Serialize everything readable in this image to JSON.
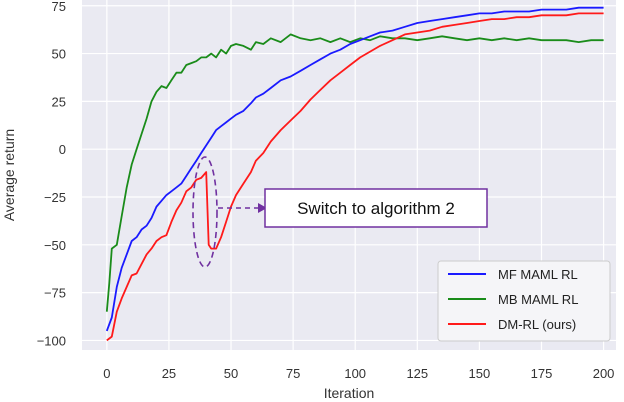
{
  "chart_data": {
    "type": "line",
    "xlabel": "Iteration",
    "ylabel": "Average return",
    "xlim": [
      -10,
      205
    ],
    "ylim": [
      -105,
      78
    ],
    "xticks": [
      "0",
      "25",
      "50",
      "75",
      "100",
      "125",
      "150",
      "175",
      "200"
    ],
    "yticks": [
      "75",
      "50",
      "25",
      "0",
      "−25",
      "−50",
      "−75",
      "−100"
    ],
    "grid": true,
    "legend_position": "lower-right",
    "annotation": {
      "text": "Switch to algorithm 2",
      "x": 42,
      "y": -30
    },
    "series": [
      {
        "name": "MF MAML RL",
        "color": "#1a1aff",
        "points": [
          [
            0,
            -95
          ],
          [
            2,
            -88
          ],
          [
            4,
            -72
          ],
          [
            6,
            -62
          ],
          [
            8,
            -55
          ],
          [
            10,
            -48
          ],
          [
            12,
            -46
          ],
          [
            14,
            -42
          ],
          [
            16,
            -40
          ],
          [
            18,
            -36
          ],
          [
            20,
            -30
          ],
          [
            22,
            -27
          ],
          [
            24,
            -24
          ],
          [
            26,
            -22
          ],
          [
            28,
            -20
          ],
          [
            30,
            -18
          ],
          [
            32,
            -14
          ],
          [
            34,
            -10
          ],
          [
            36,
            -6
          ],
          [
            38,
            -2
          ],
          [
            40,
            2
          ],
          [
            42,
            6
          ],
          [
            44,
            10
          ],
          [
            46,
            12
          ],
          [
            48,
            14
          ],
          [
            50,
            16
          ],
          [
            52,
            18
          ],
          [
            55,
            20
          ],
          [
            58,
            24
          ],
          [
            60,
            27
          ],
          [
            63,
            29
          ],
          [
            66,
            32
          ],
          [
            70,
            36
          ],
          [
            74,
            38
          ],
          [
            78,
            41
          ],
          [
            82,
            44
          ],
          [
            86,
            47
          ],
          [
            90,
            50
          ],
          [
            94,
            52
          ],
          [
            98,
            55
          ],
          [
            102,
            57
          ],
          [
            106,
            59
          ],
          [
            110,
            61
          ],
          [
            115,
            62
          ],
          [
            120,
            64
          ],
          [
            125,
            66
          ],
          [
            130,
            67
          ],
          [
            135,
            68
          ],
          [
            140,
            69
          ],
          [
            145,
            70
          ],
          [
            150,
            71
          ],
          [
            155,
            71
          ],
          [
            160,
            72
          ],
          [
            165,
            72
          ],
          [
            170,
            72
          ],
          [
            175,
            73
          ],
          [
            180,
            73
          ],
          [
            185,
            73
          ],
          [
            190,
            74
          ],
          [
            195,
            74
          ],
          [
            200,
            74
          ]
        ]
      },
      {
        "name": "MB MAML RL",
        "color": "#1a8c1a",
        "points": [
          [
            0,
            -85
          ],
          [
            1,
            -70
          ],
          [
            2,
            -52
          ],
          [
            4,
            -50
          ],
          [
            6,
            -35
          ],
          [
            8,
            -20
          ],
          [
            10,
            -8
          ],
          [
            12,
            0
          ],
          [
            14,
            8
          ],
          [
            16,
            16
          ],
          [
            18,
            25
          ],
          [
            20,
            30
          ],
          [
            22,
            33
          ],
          [
            24,
            32
          ],
          [
            26,
            36
          ],
          [
            28,
            40
          ],
          [
            30,
            40
          ],
          [
            32,
            44
          ],
          [
            34,
            45
          ],
          [
            36,
            46
          ],
          [
            38,
            48
          ],
          [
            40,
            48
          ],
          [
            42,
            50
          ],
          [
            44,
            48
          ],
          [
            46,
            52
          ],
          [
            48,
            50
          ],
          [
            50,
            54
          ],
          [
            52,
            55
          ],
          [
            55,
            54
          ],
          [
            58,
            52
          ],
          [
            60,
            56
          ],
          [
            63,
            55
          ],
          [
            66,
            58
          ],
          [
            70,
            56
          ],
          [
            74,
            60
          ],
          [
            78,
            58
          ],
          [
            82,
            57
          ],
          [
            86,
            58
          ],
          [
            90,
            56
          ],
          [
            94,
            58
          ],
          [
            98,
            56
          ],
          [
            102,
            58
          ],
          [
            106,
            57
          ],
          [
            110,
            59
          ],
          [
            115,
            58
          ],
          [
            120,
            58
          ],
          [
            125,
            57
          ],
          [
            130,
            58
          ],
          [
            135,
            59
          ],
          [
            140,
            58
          ],
          [
            145,
            57
          ],
          [
            150,
            58
          ],
          [
            155,
            57
          ],
          [
            160,
            58
          ],
          [
            165,
            57
          ],
          [
            170,
            58
          ],
          [
            175,
            57
          ],
          [
            180,
            57
          ],
          [
            185,
            57
          ],
          [
            190,
            56
          ],
          [
            195,
            57
          ],
          [
            200,
            57
          ]
        ]
      },
      {
        "name": "DM-RL (ours)",
        "color": "#ff1a1a",
        "points": [
          [
            0,
            -100
          ],
          [
            2,
            -98
          ],
          [
            4,
            -85
          ],
          [
            6,
            -78
          ],
          [
            8,
            -72
          ],
          [
            10,
            -66
          ],
          [
            12,
            -65
          ],
          [
            14,
            -60
          ],
          [
            16,
            -55
          ],
          [
            18,
            -52
          ],
          [
            20,
            -48
          ],
          [
            22,
            -46
          ],
          [
            24,
            -45
          ],
          [
            26,
            -38
          ],
          [
            28,
            -32
          ],
          [
            30,
            -28
          ],
          [
            32,
            -22
          ],
          [
            34,
            -20
          ],
          [
            36,
            -16
          ],
          [
            38,
            -15
          ],
          [
            40,
            -12
          ],
          [
            41,
            -50
          ],
          [
            42,
            -52
          ],
          [
            44,
            -52
          ],
          [
            46,
            -46
          ],
          [
            48,
            -38
          ],
          [
            50,
            -30
          ],
          [
            52,
            -24
          ],
          [
            55,
            -18
          ],
          [
            58,
            -12
          ],
          [
            60,
            -6
          ],
          [
            63,
            -2
          ],
          [
            66,
            4
          ],
          [
            70,
            10
          ],
          [
            74,
            15
          ],
          [
            78,
            20
          ],
          [
            82,
            26
          ],
          [
            86,
            31
          ],
          [
            90,
            36
          ],
          [
            94,
            40
          ],
          [
            98,
            44
          ],
          [
            102,
            48
          ],
          [
            106,
            51
          ],
          [
            110,
            54
          ],
          [
            115,
            57
          ],
          [
            120,
            60
          ],
          [
            125,
            61
          ],
          [
            130,
            62
          ],
          [
            135,
            64
          ],
          [
            140,
            65
          ],
          [
            145,
            66
          ],
          [
            150,
            67
          ],
          [
            155,
            68
          ],
          [
            160,
            68
          ],
          [
            165,
            69
          ],
          [
            170,
            69
          ],
          [
            175,
            70
          ],
          [
            180,
            70
          ],
          [
            185,
            70
          ],
          [
            190,
            71
          ],
          [
            195,
            71
          ],
          [
            200,
            71
          ]
        ]
      }
    ]
  }
}
